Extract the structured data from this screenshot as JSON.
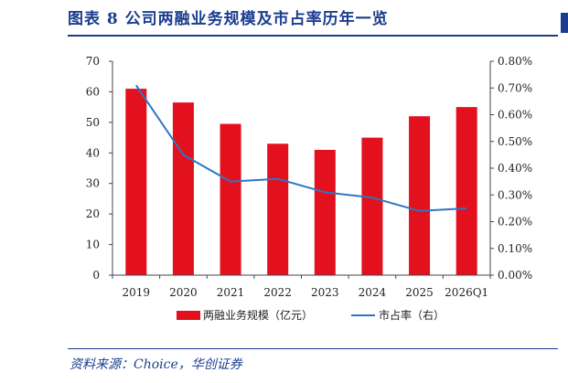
{
  "header": {
    "title": "图表 8   公司两融业务规模及市占率历年一览"
  },
  "footer": {
    "source": "资料来源：Choice，华创证券"
  },
  "colors": {
    "bar": "#e3101e",
    "line": "#2e75c4",
    "accent": "#1a3d8f"
  },
  "chart_data": {
    "type": "bar",
    "title": "",
    "categories": [
      "2019",
      "2020",
      "2021",
      "2022",
      "2023",
      "2024",
      "2025",
      "2026Q1"
    ],
    "series": [
      {
        "name": "两融业务规模（亿元）",
        "type": "bar",
        "axis": "left",
        "values": [
          61,
          56.5,
          49.5,
          43,
          41,
          45,
          52,
          55
        ]
      },
      {
        "name": "市占率（右）",
        "type": "line",
        "axis": "right",
        "values": [
          0.0071,
          0.0045,
          0.0035,
          0.0036,
          0.0031,
          0.0029,
          0.0024,
          0.0025
        ]
      }
    ],
    "y_left": {
      "min": 0,
      "max": 70,
      "ticks": [
        "0",
        "10",
        "20",
        "30",
        "40",
        "50",
        "60",
        "70"
      ]
    },
    "y_right": {
      "min": 0,
      "max": 0.008,
      "ticks": [
        "0.00%",
        "0.10%",
        "0.20%",
        "0.30%",
        "0.40%",
        "0.50%",
        "0.60%",
        "0.70%",
        "0.80%"
      ]
    },
    "legend_position": "bottom",
    "grid": false
  }
}
